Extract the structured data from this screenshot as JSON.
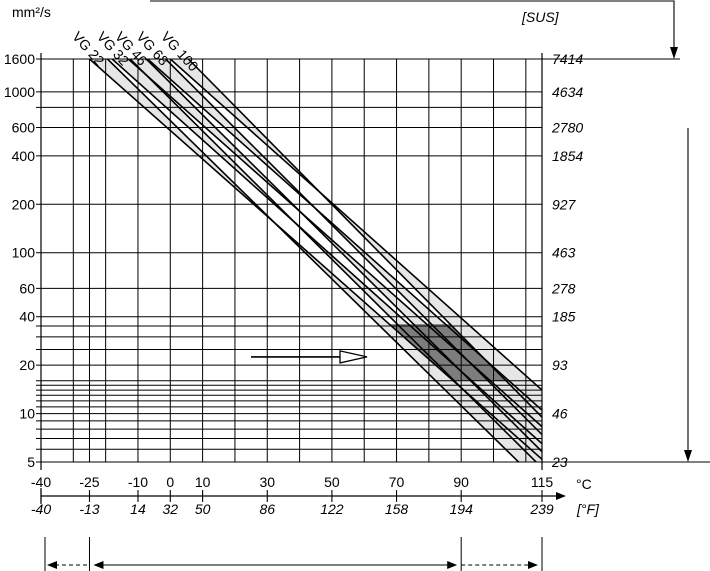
{
  "chart_data": {
    "type": "line",
    "title": "",
    "ylabel": "mm²/s",
    "ylabel_secondary": "[SUS]",
    "xlabel": "°C",
    "xlabel_secondary": "[°F]",
    "y_scale": "log",
    "ylim": [
      5,
      1600
    ],
    "xlim": [
      -40,
      115
    ],
    "y_ticks": [
      1600,
      1000,
      600,
      400,
      200,
      100,
      60,
      40,
      20,
      10,
      5
    ],
    "y_ticks_secondary": [
      {
        "mm2s": 1600,
        "label": "7414"
      },
      {
        "mm2s": 1000,
        "label": "4634"
      },
      {
        "mm2s": 600,
        "label": "2780"
      },
      {
        "mm2s": 400,
        "label": "1854"
      },
      {
        "mm2s": 200,
        "label": "927"
      },
      {
        "mm2s": 100,
        "label": "463"
      },
      {
        "mm2s": 60,
        "label": "278"
      },
      {
        "mm2s": 40,
        "label": "185"
      },
      {
        "mm2s": 20,
        "label": "93"
      },
      {
        "mm2s": 10,
        "label": "46"
      },
      {
        "mm2s": 5,
        "label": "23"
      }
    ],
    "x_ticks": [
      -40,
      -25,
      -10,
      0,
      10,
      30,
      50,
      70,
      90,
      115
    ],
    "x_ticks_secondary": [
      {
        "c": -40,
        "label": "-40"
      },
      {
        "c": -25,
        "label": "-13"
      },
      {
        "c": -10,
        "label": "14"
      },
      {
        "c": 0,
        "label": "32"
      },
      {
        "c": 10,
        "label": "50"
      },
      {
        "c": 30,
        "label": "86"
      },
      {
        "c": 50,
        "label": "122"
      },
      {
        "c": 70,
        "label": "158"
      },
      {
        "c": 90,
        "label": "194"
      },
      {
        "c": 115,
        "label": "239"
      }
    ],
    "vertical_gridlines_c": [
      -40,
      -30,
      -25,
      -20,
      -10,
      0,
      10,
      20,
      30,
      40,
      50,
      60,
      70,
      80,
      90,
      100,
      110,
      115
    ],
    "horizontal_gridlines": [
      5,
      6,
      7,
      8,
      9,
      10,
      11,
      12,
      13,
      14,
      15,
      16,
      20,
      25,
      30,
      35,
      40,
      60,
      100,
      200,
      400,
      600,
      800,
      1000,
      1600
    ],
    "series": [
      {
        "name": "VG 22",
        "band": [
          {
            "x": -25,
            "y_upper": 1600,
            "y_lower": 1600
          },
          {
            "x": 115,
            "y_upper": 5.2,
            "y_lower": 3.6
          }
        ]
      },
      {
        "name": "VG 32",
        "band": [
          {
            "x": -18,
            "y_upper": 1600,
            "y_lower": 1600
          },
          {
            "x": 115,
            "y_upper": 6.5,
            "y_lower": 4.6
          }
        ]
      },
      {
        "name": "VG 46",
        "band": [
          {
            "x": -13,
            "y_upper": 1600,
            "y_lower": 1600
          },
          {
            "x": 115,
            "y_upper": 8.3,
            "y_lower": 5.8
          }
        ]
      },
      {
        "name": "VG 68",
        "band": [
          {
            "x": -7,
            "y_upper": 1600,
            "y_lower": 1600
          },
          {
            "x": 115,
            "y_upper": 10.5,
            "y_lower": 7.4
          }
        ]
      },
      {
        "name": "VG 100",
        "band": [
          {
            "x": 0,
            "y_upper": 1600,
            "y_lower": 1600
          },
          {
            "x": 115,
            "y_upper": 14,
            "y_lower": 9.5
          }
        ]
      }
    ],
    "optimal_range": {
      "y_min": 16,
      "y_max": 36,
      "color": "#7d7d7d"
    },
    "band_fill_color": "#e6e6e6",
    "sus_arrow_label": "[SUS]"
  }
}
